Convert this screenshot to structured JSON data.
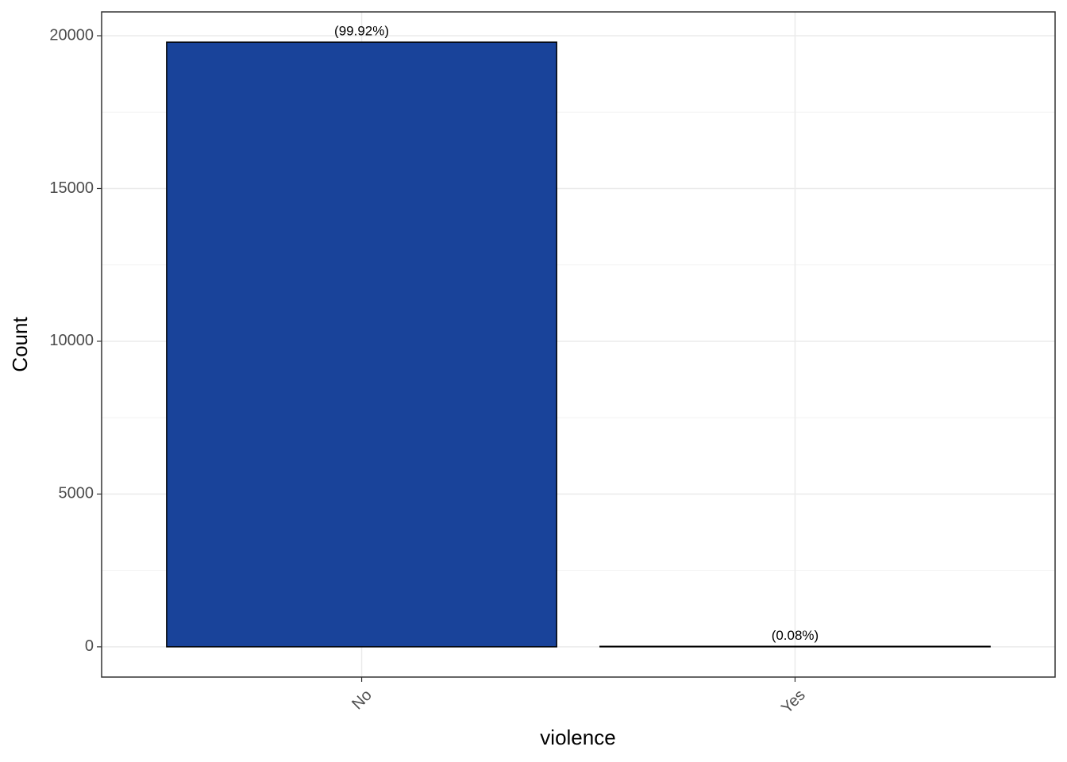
{
  "chart_data": {
    "type": "bar",
    "x_label": "violence",
    "y_label": "Count",
    "categories": [
      "No",
      "Yes"
    ],
    "values": [
      19790,
      16
    ],
    "annotations": [
      "(99.92%)",
      "(0.08%)"
    ],
    "color": "#19439a",
    "ylim": [
      -990,
      20780
    ],
    "yticks": [
      0,
      5000,
      10000,
      15000,
      20000
    ],
    "grid": true
  }
}
